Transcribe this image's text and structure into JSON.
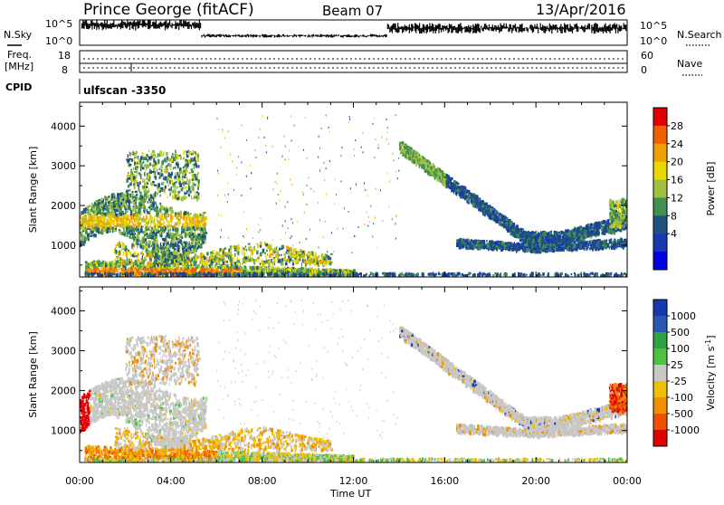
{
  "header": {
    "station": "Prince George (fitACF)",
    "beam": "Beam 07",
    "date": "13/Apr/2016"
  },
  "nsky_panel": {
    "left_label": "N.Sky",
    "right_label": "N.Search",
    "left_ticks": [
      "10^5",
      "10^0"
    ],
    "right_ticks": [
      "10^5",
      "10^0"
    ]
  },
  "freq_panel": {
    "left_label": "Freq.",
    "left_unit": "[MHz]",
    "right_label": "Nave",
    "left_ticks": [
      "18",
      "8"
    ],
    "right_ticks": [
      "60",
      "0"
    ]
  },
  "cpid": {
    "label": "CPID",
    "value": "ulfscan -3350"
  },
  "chart_data": [
    {
      "type": "heatmap",
      "quantity": "Power",
      "ylabel": "Slant Range [km]",
      "ylim": [
        200,
        4600
      ],
      "yticks": [
        "1000",
        "2000",
        "3000",
        "4000"
      ],
      "xlim_hours": [
        0,
        24
      ],
      "colorbar": {
        "label": "Power [dB]",
        "ticks": [
          "28",
          "24",
          "20",
          "16",
          "12",
          "8",
          "4"
        ],
        "colors": [
          "#e00000",
          "#f06000",
          "#f0a000",
          "#e8d800",
          "#a0c040",
          "#409050",
          "#205080",
          "#1838b0",
          "#0000e0"
        ]
      },
      "echo_bands": [
        {
          "name": "near-range ground scatter",
          "t": [
            0.2,
            12
          ],
          "range_km": [
            300,
            700
          ],
          "dominant_power_db": 24
        },
        {
          "name": "early F region",
          "t": [
            0,
            5.5
          ],
          "range_km": [
            1000,
            2600
          ],
          "dominant_power_db": 12
        },
        {
          "name": "afternoon arc upper",
          "t": [
            14,
            24
          ],
          "range_km": [
            1100,
            3500
          ],
          "dominant_power_db": 8
        },
        {
          "name": "afternoon arc lower",
          "t": [
            16.5,
            24
          ],
          "range_km": [
            900,
            1300
          ],
          "dominant_power_db": 8
        }
      ]
    },
    {
      "type": "heatmap",
      "quantity": "Velocity",
      "ylabel": "Slant Range [km]",
      "ylim": [
        200,
        4600
      ],
      "yticks": [
        "1000",
        "2000",
        "3000",
        "4000"
      ],
      "xlim_hours": [
        0,
        24
      ],
      "xlabel": "Time UT",
      "xticks": [
        "00:00",
        "04:00",
        "08:00",
        "12:00",
        "16:00",
        "20:00",
        "00:00"
      ],
      "colorbar": {
        "label": "Velocity [m s",
        "label_exp": "-1",
        "label_end": "]",
        "ticks": [
          "1000",
          "500",
          "100",
          "25",
          "-25",
          "-100",
          "-500",
          "-1000"
        ],
        "colors": [
          "#1838b0",
          "#2858b0",
          "#30a040",
          "#50c040",
          "#c8c8c8",
          "#f0c000",
          "#f09000",
          "#f05000",
          "#e00000"
        ]
      },
      "echo_bands": [
        {
          "name": "near-range",
          "t": [
            0.2,
            12
          ],
          "range_km": [
            300,
            700
          ],
          "dominant_velocity": -100
        },
        {
          "name": "early F region",
          "t": [
            0,
            5.5
          ],
          "range_km": [
            1000,
            2600
          ],
          "dominant_velocity": 0
        },
        {
          "name": "afternoon arc",
          "t": [
            14,
            24
          ],
          "range_km": [
            900,
            3500
          ],
          "dominant_velocity": 0
        },
        {
          "name": "late negative",
          "t": [
            23.3,
            24
          ],
          "range_km": [
            1500,
            2200
          ],
          "dominant_velocity": -1000
        }
      ]
    }
  ]
}
